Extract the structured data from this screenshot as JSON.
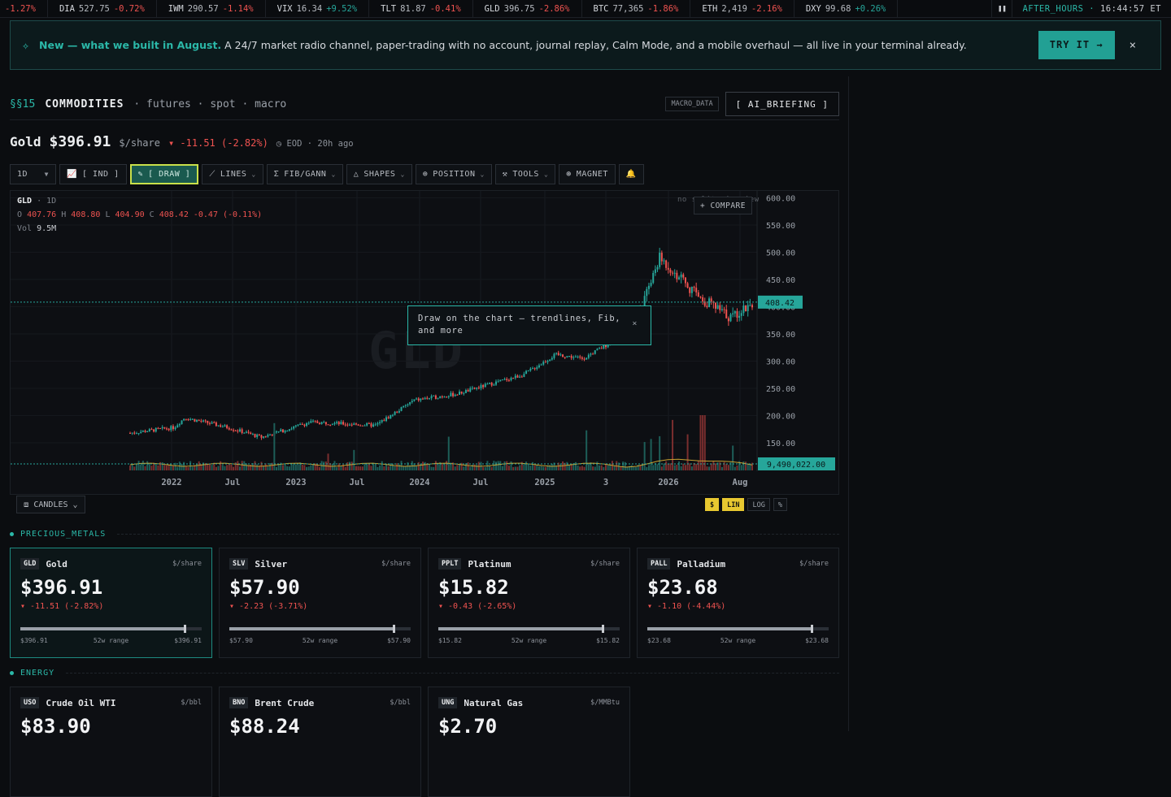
{
  "ticker": {
    "items": [
      {
        "sym": "",
        "px": "",
        "chg": "-1.27%",
        "dir": "down"
      },
      {
        "sym": "DIA",
        "px": "527.75",
        "chg": "-0.72%",
        "dir": "down"
      },
      {
        "sym": "IWM",
        "px": "290.57",
        "chg": "-1.14%",
        "dir": "down"
      },
      {
        "sym": "VIX",
        "px": "16.34",
        "chg": "+9.52%",
        "dir": "up"
      },
      {
        "sym": "TLT",
        "px": "81.87",
        "chg": "-0.41%",
        "dir": "down"
      },
      {
        "sym": "GLD",
        "px": "396.75",
        "chg": "-2.86%",
        "dir": "down"
      },
      {
        "sym": "BTC",
        "px": "77,365",
        "chg": "-1.86%",
        "dir": "down"
      },
      {
        "sym": "ETH",
        "px": "2,419",
        "chg": "-2.16%",
        "dir": "down"
      },
      {
        "sym": "DXY",
        "px": "99.68",
        "chg": "+0.26%",
        "dir": "up"
      }
    ],
    "pause_icon": "pause-icon",
    "session_label": "AFTER_HOURS",
    "clock": "16:44:57 ET"
  },
  "banner": {
    "icon": "sparkle-icon",
    "lead": "New — what we built in August.",
    "text": "A 24/7 market radio channel, paper-trading with no account, journal replay, Calm Mode, and a mobile overhaul — all live in your terminal already.",
    "cta": "TRY IT →",
    "close": "×"
  },
  "section": {
    "id": "§§15",
    "title": "COMMODITIES",
    "sub": "· futures · spot · macro",
    "macro_tag": "MACRO_DATA",
    "ai_button": "[ AI_BRIEFING ]"
  },
  "quote": {
    "name": "Gold",
    "price": "$396.91",
    "unit": "$/share",
    "change": "▾ -11.51 (-2.82%)",
    "eod": "◷ EOD · 20h ago"
  },
  "toolbar": {
    "interval": "1D",
    "ind": "[ IND ]",
    "draw": "[ DRAW ]",
    "lines": "LINES",
    "fib": "FIB/GANN",
    "shapes": "SHAPES",
    "position": "POSITION",
    "tools": "TOOLS",
    "magnet": "MAGNET",
    "alert_icon": "bell-icon"
  },
  "chart_overlay": {
    "symbol": "GLD",
    "interval": "· 1D",
    "o_label": "O",
    "o": "407.76",
    "h_label": "H",
    "h": "408.80",
    "l_label": "L",
    "l": "404.90",
    "c_label": "C",
    "c": "408.42",
    "chg": "-0.47 (-0.11%)",
    "vol_label": "Vol",
    "vol": "9.5M",
    "compare": "+ COMPARE",
    "split_note": "no splits in view",
    "tooltip": "Draw on the chart — trendlines, Fib, and more",
    "tooltip_close": "×",
    "watermark": "GLD"
  },
  "chart_data": {
    "type": "candlestick",
    "title": "",
    "x_ticks": [
      "2022",
      "Jul",
      "2023",
      "Jul",
      "2024",
      "Jul",
      "2025",
      "3",
      "2026",
      "Aug"
    ],
    "y_ticks": [
      150,
      200,
      250,
      300,
      350,
      400,
      450,
      500,
      550,
      600
    ],
    "ylim": [
      150,
      600
    ],
    "last_price": "408.42",
    "last_volume": "9,490,022.00",
    "series": [
      {
        "name": "GLD",
        "approx_path": [
          [
            0,
            168
          ],
          [
            0.08,
            178
          ],
          [
            0.1,
            196
          ],
          [
            0.18,
            178
          ],
          [
            0.24,
            160
          ],
          [
            0.33,
            188
          ],
          [
            0.45,
            182
          ],
          [
            0.52,
            228
          ],
          [
            0.6,
            240
          ],
          [
            0.66,
            258
          ],
          [
            0.72,
            275
          ],
          [
            0.78,
            312
          ],
          [
            0.83,
            305
          ],
          [
            0.9,
            345
          ],
          [
            0.94,
            405
          ],
          [
            0.97,
            490
          ],
          [
            1.0,
            460
          ],
          [
            1.04,
            420
          ],
          [
            1.1,
            380
          ],
          [
            1.14,
            408
          ]
        ]
      }
    ]
  },
  "chart_controls": {
    "candles": "CANDLES",
    "scale_dollar": "$",
    "scale_lin": "LIN",
    "scale_log": "LOG",
    "scale_pct": "%"
  },
  "groups": [
    {
      "label": "PRECIOUS_METALS",
      "cards": [
        {
          "ticker": "GLD",
          "name": "Gold",
          "unit": "$/share",
          "price": "$396.91",
          "change": "▾ -11.51 (-2.82%)",
          "range_lo": "$396.91",
          "range_label": "52w range",
          "range_hi": "$396.91",
          "range_pos": 0.9
        },
        {
          "ticker": "SLV",
          "name": "Silver",
          "unit": "$/share",
          "price": "$57.90",
          "change": "▾ -2.23 (-3.71%)",
          "range_lo": "$57.90",
          "range_label": "52w range",
          "range_hi": "$57.90",
          "range_pos": 0.9
        },
        {
          "ticker": "PPLT",
          "name": "Platinum",
          "unit": "$/share",
          "price": "$15.82",
          "change": "▾ -0.43 (-2.65%)",
          "range_lo": "$15.82",
          "range_label": "52w range",
          "range_hi": "$15.82",
          "range_pos": 0.9
        },
        {
          "ticker": "PALL",
          "name": "Palladium",
          "unit": "$/share",
          "price": "$23.68",
          "change": "▾ -1.10 (-4.44%)",
          "range_lo": "$23.68",
          "range_label": "52w range",
          "range_hi": "$23.68",
          "range_pos": 0.9
        }
      ]
    },
    {
      "label": "ENERGY",
      "cards": [
        {
          "ticker": "USO",
          "name": "Crude Oil WTI",
          "unit": "$/bbl",
          "price": "$83.90",
          "change": "",
          "range_lo": "",
          "range_label": "",
          "range_hi": ""
        },
        {
          "ticker": "BNO",
          "name": "Brent Crude",
          "unit": "$/bbl",
          "price": "$88.24",
          "change": "",
          "range_lo": "",
          "range_label": "",
          "range_hi": ""
        },
        {
          "ticker": "UNG",
          "name": "Natural Gas",
          "unit": "$/MMBtu",
          "price": "$2.70",
          "change": "",
          "range_lo": "",
          "range_label": "",
          "range_hi": ""
        }
      ]
    }
  ]
}
